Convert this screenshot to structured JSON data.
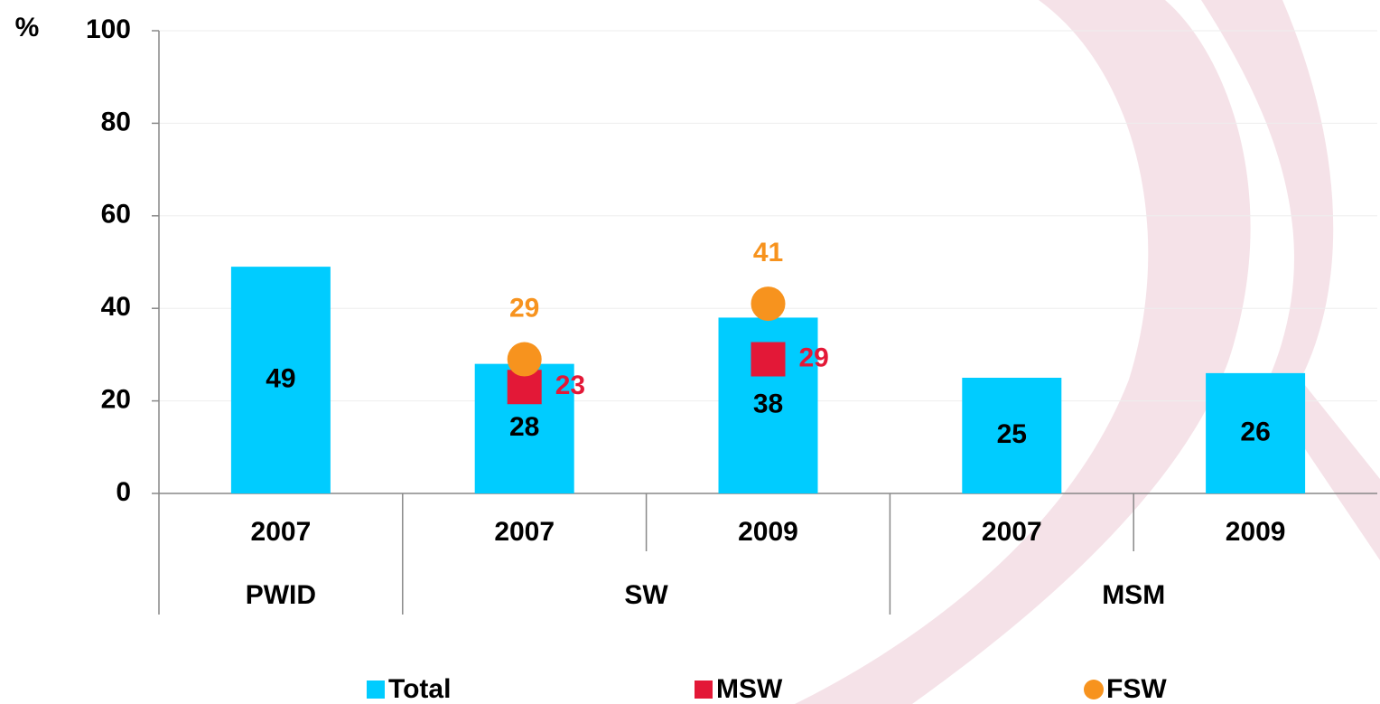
{
  "chart_data": {
    "type": "bar",
    "y_label": "%",
    "groups": [
      {
        "name": "PWID",
        "categories": [
          "2007"
        ]
      },
      {
        "name": "SW",
        "categories": [
          "2007",
          "2009"
        ]
      },
      {
        "name": "MSM",
        "categories": [
          "2007",
          "2009"
        ]
      }
    ],
    "series": [
      {
        "name": "Total",
        "type": "bar",
        "color": "#00ccff",
        "values": [
          49,
          28,
          38,
          25,
          26
        ]
      },
      {
        "name": "MSW",
        "type": "square",
        "color": "#e31837",
        "values": [
          null,
          23,
          29,
          null,
          null
        ]
      },
      {
        "name": "FSW",
        "type": "circle",
        "color": "#f7931e",
        "values": [
          null,
          29,
          41,
          null,
          null
        ]
      }
    ],
    "ylim": [
      0,
      100
    ],
    "yticks": [
      0,
      20,
      40,
      60,
      80,
      100
    ],
    "grid": true
  }
}
